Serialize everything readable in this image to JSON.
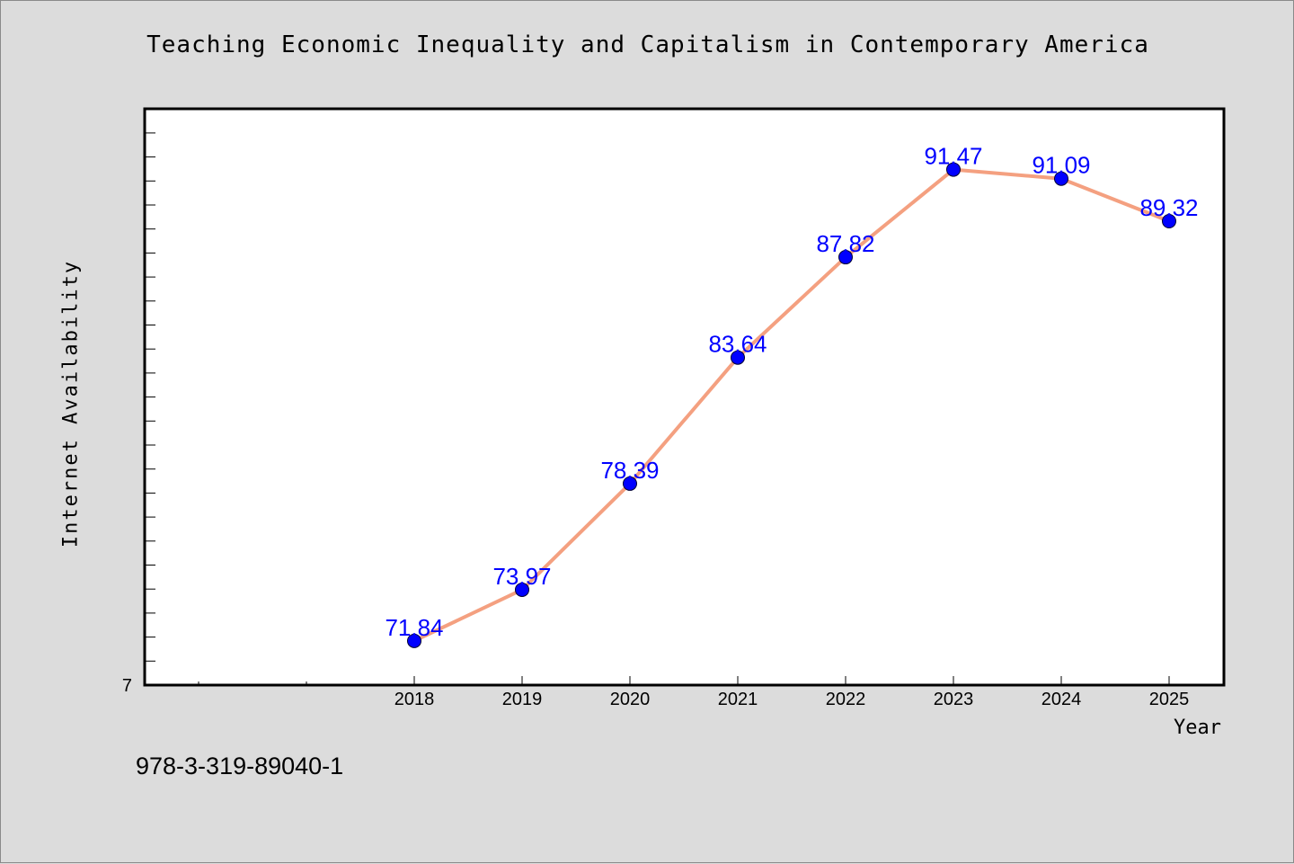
{
  "chart_data": {
    "type": "line",
    "title": "Teaching Economic Inequality and Capitalism in Contemporary America",
    "xlabel": "Year",
    "ylabel": "Internet Availability",
    "x": [
      "2018",
      "2019",
      "2020",
      "2021",
      "2022",
      "2023",
      "2024",
      "2025"
    ],
    "series": [
      {
        "values": [
          71.84,
          73.97,
          78.39,
          83.64,
          87.82,
          91.47,
          91.09,
          89.32
        ]
      }
    ],
    "y_tick_labels": [
      "7"
    ],
    "ylim": [
      70,
      94
    ],
    "grid": false,
    "legend": "none",
    "colors": {
      "line": "#f4a080",
      "marker": "#0000ff",
      "labels": "#0000ff",
      "background": "#dcdcdc",
      "plot_bg": "#ffffff"
    }
  },
  "footer": {
    "isbn": "978-3-319-89040-1"
  }
}
